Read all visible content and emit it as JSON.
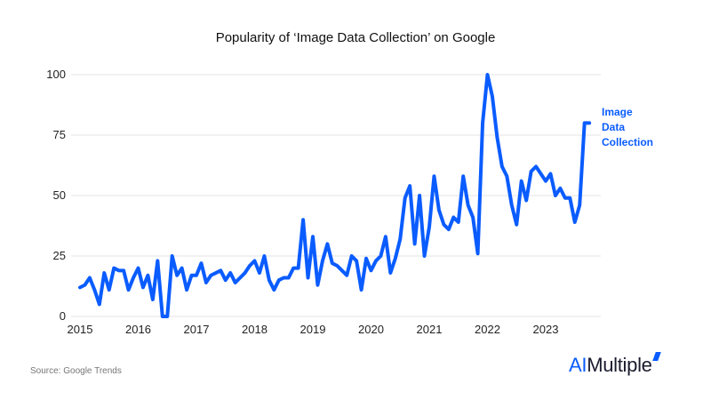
{
  "chart_data": {
    "type": "line",
    "title": "Popularity of ‘Image Data Collection’ on Google",
    "xlabel": "",
    "ylabel": "",
    "ylim": [
      0,
      100
    ],
    "yticks": [
      0,
      25,
      50,
      75,
      100
    ],
    "xticks": [
      "2015",
      "2016",
      "2017",
      "2018",
      "2019",
      "2020",
      "2021",
      "2022",
      "2023"
    ],
    "grid": true,
    "line_color": "#0a5cff",
    "start": "2015-01",
    "interval": "month",
    "series": [
      {
        "name": "Image Data Collection",
        "values": [
          12,
          13,
          16,
          11,
          5,
          18,
          11,
          20,
          19,
          19,
          11,
          16,
          20,
          12,
          17,
          7,
          23,
          0,
          0,
          25,
          17,
          20,
          11,
          17,
          17,
          22,
          14,
          17,
          18,
          19,
          15,
          18,
          14,
          16,
          18,
          21,
          23,
          18,
          25,
          15,
          11,
          15,
          16,
          16,
          20,
          20,
          40,
          16,
          33,
          13,
          23,
          30,
          22,
          21,
          19,
          17,
          25,
          23,
          11,
          24,
          19,
          23,
          25,
          33,
          18,
          24,
          32,
          49,
          54,
          30,
          50,
          25,
          37,
          58,
          44,
          38,
          36,
          41,
          39,
          58,
          46,
          41,
          26,
          80,
          100,
          91,
          74,
          62,
          58,
          46,
          38,
          56,
          48,
          60,
          62,
          59,
          56,
          59,
          50,
          53,
          49,
          49,
          39,
          46,
          80,
          80
        ]
      }
    ]
  },
  "source": "Source: Google Trends",
  "logo": {
    "ai": "AI",
    "rest": "Multiple"
  },
  "series_label_lines": [
    "Image",
    "Data",
    "Collection"
  ]
}
